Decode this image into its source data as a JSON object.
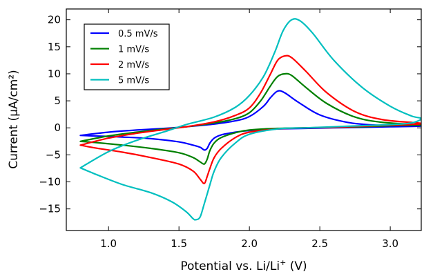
{
  "chart_data": {
    "type": "line",
    "xlabel": "Potential vs. Li/Li",
    "xlabel_sup": "+",
    "xlabel_unit": " (V)",
    "ylabel": "Current (µA/cm²)",
    "xlim": [
      0.7,
      3.22
    ],
    "ylim": [
      -19,
      22
    ],
    "x_ticks": [
      1.0,
      1.5,
      2.0,
      2.5,
      3.0
    ],
    "x_tick_labels": [
      "1.0",
      "1.5",
      "2.0",
      "2.5",
      "3.0"
    ],
    "y_ticks": [
      -15,
      -10,
      -5,
      0,
      5,
      10,
      15,
      20
    ],
    "y_tick_labels": [
      "−15",
      "−10",
      "−5",
      "0",
      "5",
      "10",
      "15",
      "20"
    ],
    "legend_position": "upper-left",
    "series": [
      {
        "name": "0.5 mV/s",
        "color": "#0000ff",
        "x": [
          0.8,
          1.0,
          1.2,
          1.4,
          1.55,
          1.75,
          1.9,
          2.0,
          2.1,
          2.15,
          2.2,
          2.25,
          2.35,
          2.5,
          2.7,
          2.9,
          3.1,
          3.2,
          3.2,
          3.0,
          2.8,
          2.6,
          2.4,
          2.2,
          2.0,
          1.9,
          1.8,
          1.75,
          1.72,
          1.7,
          1.68,
          1.65,
          1.6,
          1.5,
          1.3,
          1.1,
          0.9,
          0.8
        ],
        "y": [
          -1.4,
          -0.8,
          -0.4,
          -0.1,
          0.2,
          0.7,
          1.3,
          2.1,
          4.0,
          5.6,
          6.8,
          6.5,
          4.7,
          2.4,
          1.0,
          0.5,
          0.4,
          0.4,
          0.3,
          0.2,
          0.1,
          0.0,
          -0.1,
          -0.2,
          -0.5,
          -0.8,
          -1.3,
          -1.9,
          -2.8,
          -3.8,
          -4.1,
          -3.6,
          -3.2,
          -2.6,
          -2.0,
          -1.7,
          -1.5,
          -1.4
        ]
      },
      {
        "name": "1 mV/s",
        "color": "#008000",
        "x": [
          0.8,
          1.0,
          1.2,
          1.4,
          1.55,
          1.75,
          1.9,
          2.0,
          2.08,
          2.15,
          2.2,
          2.25,
          2.3,
          2.4,
          2.55,
          2.75,
          2.95,
          3.2,
          3.2,
          3.0,
          2.8,
          2.6,
          2.4,
          2.2,
          2.0,
          1.9,
          1.8,
          1.75,
          1.72,
          1.7,
          1.68,
          1.65,
          1.6,
          1.5,
          1.3,
          1.1,
          0.9,
          0.8
        ],
        "y": [
          -2.5,
          -1.5,
          -0.8,
          -0.2,
          0.2,
          0.9,
          1.7,
          2.8,
          5.0,
          7.8,
          9.5,
          10.0,
          9.7,
          7.5,
          4.5,
          2.0,
          1.0,
          0.6,
          0.5,
          0.4,
          0.2,
          0.1,
          0.0,
          -0.1,
          -0.4,
          -0.9,
          -1.8,
          -2.8,
          -4.2,
          -5.8,
          -6.7,
          -6.3,
          -5.5,
          -4.6,
          -3.8,
          -3.2,
          -2.7,
          -2.5
        ]
      },
      {
        "name": "2 mV/s",
        "color": "#ff0000",
        "x": [
          0.8,
          1.0,
          1.2,
          1.4,
          1.55,
          1.75,
          1.9,
          2.0,
          2.08,
          2.15,
          2.2,
          2.25,
          2.3,
          2.4,
          2.55,
          2.75,
          2.95,
          3.2,
          3.2,
          3.0,
          2.8,
          2.6,
          2.4,
          2.2,
          2.0,
          1.9,
          1.8,
          1.75,
          1.72,
          1.7,
          1.68,
          1.65,
          1.6,
          1.5,
          1.3,
          1.1,
          0.9,
          0.8
        ],
        "y": [
          -3.2,
          -1.9,
          -1.0,
          -0.3,
          0.2,
          1.1,
          2.3,
          3.7,
          6.5,
          10.0,
          12.5,
          13.3,
          13.0,
          10.5,
          6.5,
          3.0,
          1.5,
          0.9,
          0.7,
          0.5,
          0.3,
          0.1,
          0.0,
          -0.2,
          -0.8,
          -1.8,
          -3.8,
          -5.5,
          -7.5,
          -9.0,
          -10.3,
          -9.5,
          -8.0,
          -6.7,
          -5.5,
          -4.5,
          -3.7,
          -3.2
        ]
      },
      {
        "name": "5 mV/s",
        "color": "#00bfbf",
        "x": [
          0.8,
          1.0,
          1.2,
          1.4,
          1.55,
          1.75,
          1.9,
          2.0,
          2.1,
          2.18,
          2.24,
          2.3,
          2.36,
          2.45,
          2.6,
          2.8,
          3.0,
          3.15,
          3.22,
          3.15,
          3.0,
          2.8,
          2.6,
          2.4,
          2.2,
          2.0,
          1.9,
          1.8,
          1.75,
          1.72,
          1.68,
          1.65,
          1.62,
          1.6,
          1.55,
          1.45,
          1.3,
          1.1,
          0.9,
          0.8
        ],
        "y": [
          -7.4,
          -4.4,
          -2.3,
          -0.7,
          0.6,
          2.0,
          3.8,
          6.0,
          9.5,
          14.0,
          18.0,
          20.0,
          19.8,
          17.5,
          12.5,
          7.5,
          4.0,
          2.2,
          1.7,
          0.9,
          0.6,
          0.4,
          0.2,
          0.0,
          -0.2,
          -1.2,
          -2.8,
          -5.5,
          -8.0,
          -10.5,
          -14.0,
          -16.5,
          -17.0,
          -16.8,
          -15.5,
          -13.7,
          -12.0,
          -10.5,
          -8.5,
          -7.4
        ]
      }
    ]
  }
}
